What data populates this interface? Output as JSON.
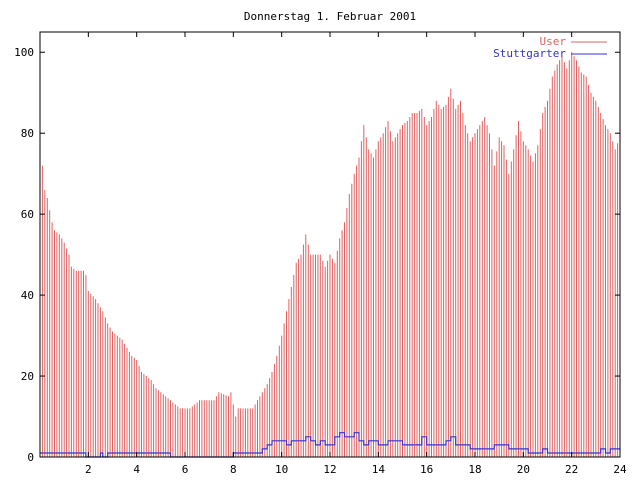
{
  "chart_data": {
    "type": "bar",
    "title": "Donnerstag 1. Februar 2001",
    "xlabel": "",
    "ylabel": "",
    "xlim": [
      0,
      24
    ],
    "ylim": [
      0,
      105
    ],
    "xticks": [
      2,
      4,
      6,
      8,
      10,
      12,
      14,
      16,
      18,
      20,
      22,
      24
    ],
    "yticks": [
      0,
      20,
      40,
      60,
      80,
      100
    ],
    "grid": false,
    "legend_position": "top-right",
    "x_step": 0.1,
    "series": [
      {
        "name": "User",
        "style": "impulses",
        "color": "#e06060",
        "keypoints": [
          [
            0.0,
            76
          ],
          [
            0.1,
            72
          ],
          [
            0.2,
            66
          ],
          [
            0.3,
            64
          ],
          [
            0.5,
            58
          ],
          [
            0.6,
            56
          ],
          [
            0.8,
            55
          ],
          [
            1.0,
            53
          ],
          [
            1.2,
            50
          ],
          [
            1.3,
            47
          ],
          [
            1.5,
            46
          ],
          [
            1.8,
            46
          ],
          [
            1.9,
            45
          ],
          [
            2.0,
            41
          ],
          [
            2.3,
            39
          ],
          [
            2.5,
            37
          ],
          [
            2.6,
            36
          ],
          [
            2.8,
            33
          ],
          [
            3.0,
            31
          ],
          [
            3.2,
            30
          ],
          [
            3.4,
            29
          ],
          [
            3.6,
            27
          ],
          [
            3.8,
            25
          ],
          [
            4.0,
            24
          ],
          [
            4.2,
            21
          ],
          [
            4.4,
            20
          ],
          [
            4.6,
            19
          ],
          [
            4.8,
            17
          ],
          [
            5.0,
            16
          ],
          [
            5.2,
            15
          ],
          [
            5.4,
            14
          ],
          [
            5.6,
            13
          ],
          [
            5.8,
            12
          ],
          [
            6.2,
            12
          ],
          [
            6.4,
            13
          ],
          [
            6.6,
            14
          ],
          [
            7.2,
            14
          ],
          [
            7.4,
            16
          ],
          [
            7.8,
            15
          ],
          [
            7.9,
            16
          ],
          [
            8.0,
            13
          ],
          [
            8.1,
            10
          ],
          [
            8.2,
            12
          ],
          [
            8.8,
            12
          ],
          [
            9.0,
            14
          ],
          [
            9.2,
            16
          ],
          [
            9.4,
            18
          ],
          [
            9.6,
            21
          ],
          [
            9.8,
            25
          ],
          [
            10.0,
            30
          ],
          [
            10.2,
            36
          ],
          [
            10.4,
            42
          ],
          [
            10.6,
            48
          ],
          [
            10.8,
            50
          ],
          [
            11.0,
            55
          ],
          [
            11.2,
            50
          ],
          [
            11.4,
            50
          ],
          [
            11.6,
            50
          ],
          [
            11.8,
            47
          ],
          [
            12.0,
            50
          ],
          [
            12.2,
            48
          ],
          [
            12.4,
            54
          ],
          [
            12.6,
            58
          ],
          [
            12.8,
            65
          ],
          [
            13.0,
            70
          ],
          [
            13.2,
            74
          ],
          [
            13.4,
            82
          ],
          [
            13.6,
            76
          ],
          [
            13.8,
            74
          ],
          [
            14.0,
            78
          ],
          [
            14.2,
            80
          ],
          [
            14.4,
            83
          ],
          [
            14.6,
            78
          ],
          [
            14.8,
            80
          ],
          [
            15.0,
            82
          ],
          [
            15.2,
            83
          ],
          [
            15.4,
            85
          ],
          [
            15.6,
            85
          ],
          [
            15.8,
            86
          ],
          [
            16.0,
            82
          ],
          [
            16.2,
            84
          ],
          [
            16.4,
            88
          ],
          [
            16.6,
            86
          ],
          [
            16.8,
            87
          ],
          [
            17.0,
            91
          ],
          [
            17.2,
            86
          ],
          [
            17.4,
            88
          ],
          [
            17.6,
            82
          ],
          [
            17.8,
            78
          ],
          [
            18.0,
            80
          ],
          [
            18.2,
            82
          ],
          [
            18.4,
            84
          ],
          [
            18.6,
            80
          ],
          [
            18.8,
            72
          ],
          [
            19.0,
            79
          ],
          [
            19.2,
            77
          ],
          [
            19.4,
            70
          ],
          [
            19.6,
            76
          ],
          [
            19.8,
            83
          ],
          [
            20.0,
            78
          ],
          [
            20.2,
            76
          ],
          [
            20.4,
            73
          ],
          [
            20.6,
            77
          ],
          [
            20.8,
            85
          ],
          [
            21.0,
            88
          ],
          [
            21.2,
            94
          ],
          [
            21.4,
            97
          ],
          [
            21.6,
            99
          ],
          [
            21.8,
            96
          ],
          [
            22.0,
            100
          ],
          [
            22.2,
            98
          ],
          [
            22.4,
            95
          ],
          [
            22.6,
            94
          ],
          [
            22.8,
            90
          ],
          [
            23.0,
            88
          ],
          [
            23.2,
            85
          ],
          [
            23.4,
            82
          ],
          [
            23.6,
            80
          ],
          [
            23.8,
            76
          ],
          [
            24.0,
            79
          ]
        ]
      },
      {
        "name": "Stuttgarter",
        "style": "steps",
        "color": "#3333cc",
        "keypoints": [
          [
            0.0,
            1
          ],
          [
            1.8,
            1
          ],
          [
            1.9,
            0
          ],
          [
            2.4,
            0
          ],
          [
            2.5,
            1
          ],
          [
            2.6,
            0
          ],
          [
            2.8,
            1
          ],
          [
            5.3,
            1
          ],
          [
            5.4,
            0
          ],
          [
            7.9,
            0
          ],
          [
            8.0,
            1
          ],
          [
            9.0,
            1
          ],
          [
            9.2,
            2
          ],
          [
            9.4,
            3
          ],
          [
            9.6,
            4
          ],
          [
            10.0,
            4
          ],
          [
            10.2,
            3
          ],
          [
            10.4,
            4
          ],
          [
            10.8,
            4
          ],
          [
            11.0,
            5
          ],
          [
            11.2,
            4
          ],
          [
            11.4,
            3
          ],
          [
            11.6,
            4
          ],
          [
            11.8,
            3
          ],
          [
            12.0,
            3
          ],
          [
            12.2,
            5
          ],
          [
            12.4,
            6
          ],
          [
            12.6,
            5
          ],
          [
            12.8,
            5
          ],
          [
            13.0,
            6
          ],
          [
            13.2,
            4
          ],
          [
            13.4,
            3
          ],
          [
            13.6,
            4
          ],
          [
            13.8,
            4
          ],
          [
            14.0,
            3
          ],
          [
            14.2,
            3
          ],
          [
            14.4,
            4
          ],
          [
            14.8,
            4
          ],
          [
            15.0,
            3
          ],
          [
            15.6,
            3
          ],
          [
            15.8,
            5
          ],
          [
            16.0,
            3
          ],
          [
            16.6,
            3
          ],
          [
            16.8,
            4
          ],
          [
            17.0,
            5
          ],
          [
            17.2,
            3
          ],
          [
            17.6,
            3
          ],
          [
            17.8,
            2
          ],
          [
            18.2,
            2
          ],
          [
            18.6,
            2
          ],
          [
            18.8,
            3
          ],
          [
            19.2,
            3
          ],
          [
            19.4,
            2
          ],
          [
            20.0,
            2
          ],
          [
            20.2,
            1
          ],
          [
            20.6,
            1
          ],
          [
            20.8,
            2
          ],
          [
            21.0,
            1
          ],
          [
            23.0,
            1
          ],
          [
            23.2,
            2
          ],
          [
            23.4,
            1
          ],
          [
            23.6,
            2
          ],
          [
            24.0,
            2
          ]
        ]
      }
    ]
  }
}
